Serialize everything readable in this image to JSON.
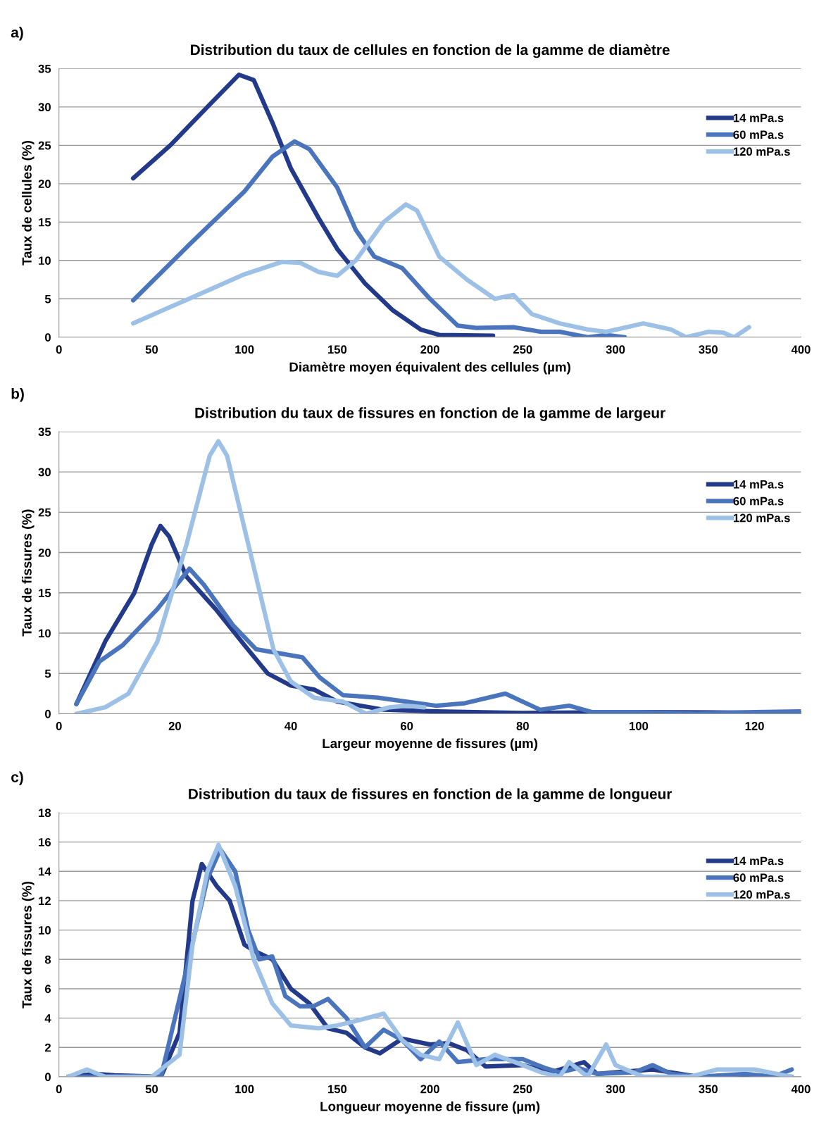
{
  "chart_data": [
    {
      "type": "line",
      "title": "Distribution du taux de cellules en fonction de la gamme de diamètre",
      "xlabel": "Diamètre moyen équivalent des cellules (µm)",
      "ylabel": "Taux de cellules (%)",
      "annotations": [
        "a)"
      ],
      "xlim": [
        0,
        400
      ],
      "xticks": [
        0,
        50,
        100,
        150,
        200,
        250,
        300,
        350,
        400
      ],
      "ylim": [
        0,
        35
      ],
      "yticks": [
        0,
        5,
        10,
        15,
        20,
        25,
        30,
        35
      ],
      "grid": "y",
      "legend": "right",
      "line_style": "solid",
      "marker": "none",
      "series": [
        {
          "name": "14 mPa.s",
          "color": "#233a8a",
          "x": [
            40,
            60,
            80,
            97,
            105,
            115,
            125,
            140,
            150,
            165,
            180,
            195,
            205,
            234
          ],
          "values": [
            20.7,
            25,
            30,
            34.2,
            33.5,
            28,
            22,
            15.5,
            11.5,
            7,
            3.5,
            1,
            0.3,
            0.2
          ]
        },
        {
          "name": "60 mPa.s",
          "color": "#4a75bc",
          "x": [
            40,
            70,
            100,
            115,
            127,
            135,
            150,
            160,
            170,
            185,
            200,
            215,
            225,
            245,
            260,
            270,
            285,
            295,
            305
          ],
          "values": [
            4.8,
            12,
            19,
            23.5,
            25.5,
            24.5,
            19.5,
            14,
            10.5,
            9,
            5,
            1.5,
            1.2,
            1.3,
            0.7,
            0.7,
            0,
            0.3,
            0
          ]
        },
        {
          "name": "120 mPa.s",
          "color": "#9dc0e6",
          "x": [
            40,
            70,
            100,
            120,
            130,
            140,
            150,
            160,
            175,
            187,
            193,
            205,
            220,
            235,
            245,
            255,
            270,
            285,
            295,
            315,
            330,
            338,
            350,
            358,
            364,
            372
          ],
          "values": [
            1.8,
            5,
            8.2,
            9.8,
            9.7,
            8.5,
            8,
            10,
            15,
            17.3,
            16.5,
            10.5,
            7.5,
            5,
            5.5,
            3,
            1.8,
            1,
            0.7,
            1.8,
            1,
            0,
            0.7,
            0.6,
            0,
            1.3
          ]
        }
      ]
    },
    {
      "type": "line",
      "title": "Distribution du taux de fissures en fonction de la gamme de largeur",
      "xlabel": "Largeur moyenne de fissures (µm)",
      "ylabel": "Taux de fissures (%)",
      "annotations": [
        "b)"
      ],
      "xlim": [
        0,
        128
      ],
      "xticks": [
        0,
        20,
        40,
        60,
        80,
        100,
        120
      ],
      "ylim": [
        0,
        35
      ],
      "yticks": [
        0,
        5,
        10,
        15,
        20,
        25,
        30,
        35
      ],
      "grid": "y",
      "legend": "right",
      "line_style": "solid",
      "marker": "none",
      "series": [
        {
          "name": "14 mPa.s",
          "color": "#233a8a",
          "x": [
            3,
            8,
            13,
            16,
            17.5,
            19,
            22,
            27,
            32,
            36,
            40,
            44,
            48,
            56,
            65,
            80,
            100,
            128
          ],
          "values": [
            1.2,
            9,
            15,
            21,
            23.3,
            22,
            17,
            13,
            8.5,
            5,
            3.5,
            3,
            1.5,
            0.5,
            0.3,
            0.1,
            0.2,
            0.1
          ]
        },
        {
          "name": "60 mPa.s",
          "color": "#4a75bc",
          "x": [
            3,
            7,
            11,
            17,
            22.5,
            25,
            30,
            34,
            38,
            42,
            45,
            49,
            55,
            60,
            65,
            70,
            77,
            83,
            88,
            92,
            100,
            110,
            120,
            128
          ],
          "values": [
            1.2,
            6.5,
            8.5,
            13,
            18,
            16,
            11,
            8,
            7.5,
            7,
            4.5,
            2.3,
            2,
            1.5,
            1,
            1.3,
            2.5,
            0.5,
            1,
            0.2,
            0.2,
            0,
            0.2,
            0.3
          ]
        },
        {
          "name": "120 mPa.s",
          "color": "#9dc0e6",
          "x": [
            3,
            8,
            12,
            17,
            22,
            26,
            27.5,
            29,
            33,
            37,
            40,
            44,
            49,
            53,
            57,
            60,
            63
          ],
          "values": [
            0,
            0.8,
            2.5,
            9,
            21,
            32,
            33.8,
            32,
            20,
            8,
            4,
            2,
            1.5,
            0,
            0.8,
            1,
            0.8
          ]
        }
      ]
    },
    {
      "type": "line",
      "title": "Distribution du taux de fissures en fonction de la gamme de longueur",
      "xlabel": "Longueur moyenne de fissure (µm)",
      "ylabel": "Taux de fissures (%)",
      "annotations": [
        "c)"
      ],
      "xlim": [
        0,
        400
      ],
      "xticks": [
        0,
        50,
        100,
        150,
        200,
        250,
        300,
        350,
        400
      ],
      "ylim": [
        0,
        18
      ],
      "yticks": [
        0,
        2,
        4,
        6,
        8,
        10,
        12,
        14,
        16,
        18
      ],
      "grid": "y",
      "legend": "right",
      "line_style": "solid",
      "marker": "none",
      "series": [
        {
          "name": "14 mPa.s",
          "color": "#233a8a",
          "x": [
            5,
            20,
            30,
            55,
            65,
            72,
            77,
            85,
            92,
            100,
            105,
            115,
            125,
            135,
            145,
            155,
            165,
            173,
            185,
            200,
            210,
            220,
            230,
            250,
            265,
            283,
            290,
            300,
            320,
            330,
            345,
            395
          ],
          "values": [
            0,
            0.2,
            0.1,
            0,
            3,
            12,
            14.5,
            13,
            12,
            9,
            8.6,
            8,
            6,
            5,
            3.3,
            3,
            2,
            1.6,
            2.6,
            2.2,
            2.3,
            1.8,
            0.7,
            0.8,
            0.3,
            1,
            0.2,
            0.3,
            0.5,
            0.3,
            0,
            0
          ]
        },
        {
          "name": "60 mPa.s",
          "color": "#4a75bc",
          "x": [
            5,
            55,
            70,
            80,
            87,
            95,
            102,
            108,
            115,
            122,
            130,
            137,
            145,
            155,
            165,
            175,
            185,
            195,
            205,
            215,
            230,
            250,
            262,
            270,
            280,
            290,
            310,
            320,
            330,
            345,
            370,
            385,
            395
          ],
          "values": [
            0,
            0,
            8,
            13.5,
            15.5,
            14,
            10,
            8,
            8.2,
            5.5,
            4.8,
            4.8,
            5.3,
            4,
            2,
            3.2,
            2.5,
            1.2,
            2.4,
            1,
            1.2,
            1.2,
            0.6,
            0.3,
            0.6,
            0.2,
            0.3,
            0.8,
            0.2,
            0,
            0.2,
            0,
            0.5
          ]
        },
        {
          "name": "120 mPa.s",
          "color": "#9dc0e6",
          "x": [
            5,
            15,
            25,
            50,
            65,
            72,
            80,
            86,
            95,
            105,
            115,
            125,
            140,
            150,
            160,
            175,
            185,
            195,
            205,
            215,
            225,
            235,
            250,
            260,
            270,
            275,
            285,
            295,
            300,
            315,
            340,
            355,
            375,
            395
          ],
          "values": [
            0,
            0.5,
            0,
            0,
            1.5,
            9,
            14,
            15.8,
            13,
            8,
            5,
            3.5,
            3.3,
            3.5,
            3.8,
            4.3,
            2.5,
            1.5,
            1.2,
            3.7,
            0.8,
            1.5,
            0.8,
            0.3,
            0,
            1,
            0,
            2.2,
            0.8,
            0,
            0,
            0.5,
            0.5,
            0
          ]
        }
      ]
    }
  ]
}
